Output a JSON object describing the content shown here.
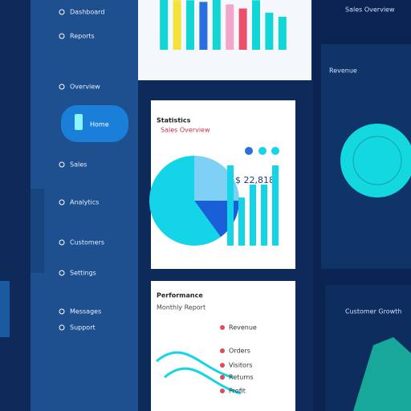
{
  "sidebar": {
    "items": [
      "Dashboard",
      "Reports",
      "Overview",
      "Sales",
      "Analytics",
      "Customers",
      "Settings",
      "Messages",
      "Support"
    ],
    "active": "Home"
  },
  "header": {
    "right_title": "Sales Overview"
  },
  "stats_panel": {
    "title": "Statistics",
    "subtitle": "Sales Overview",
    "amount": "$ 22,818"
  },
  "list_panel": {
    "title": "Performance",
    "subtitle": "Monthly Report",
    "rows": [
      "Revenue",
      "Orders",
      "Visitors",
      "Returns",
      "Profit"
    ]
  },
  "right_cards": {
    "top": "Revenue",
    "bottom": "Customer Growth"
  },
  "chart_data": [
    {
      "type": "bar",
      "values": [
        62,
        60,
        60,
        58,
        62,
        55,
        50,
        60,
        45,
        40
      ],
      "colors": [
        "#12d6d6",
        "#f2e23a",
        "#12d6d6",
        "#2a6fe0",
        "#12d6d6",
        "#f3a6c8",
        "#e9506a",
        "#12d6d6",
        "#12d6d6",
        "#12d6d6"
      ],
      "ylim": [
        0,
        70
      ]
    },
    {
      "type": "pie",
      "values": [
        25,
        15,
        60
      ],
      "colors": [
        "#7fd0f5",
        "#1a5fd8",
        "#14d4e8"
      ]
    },
    {
      "type": "bar",
      "values": [
        50,
        30,
        38,
        38,
        50
      ],
      "colors": [
        "#14d4e8",
        "#14d4e8",
        "#14d4e8",
        "#14d4e8",
        "#14d4e8"
      ],
      "ylim": [
        0,
        60
      ]
    }
  ]
}
